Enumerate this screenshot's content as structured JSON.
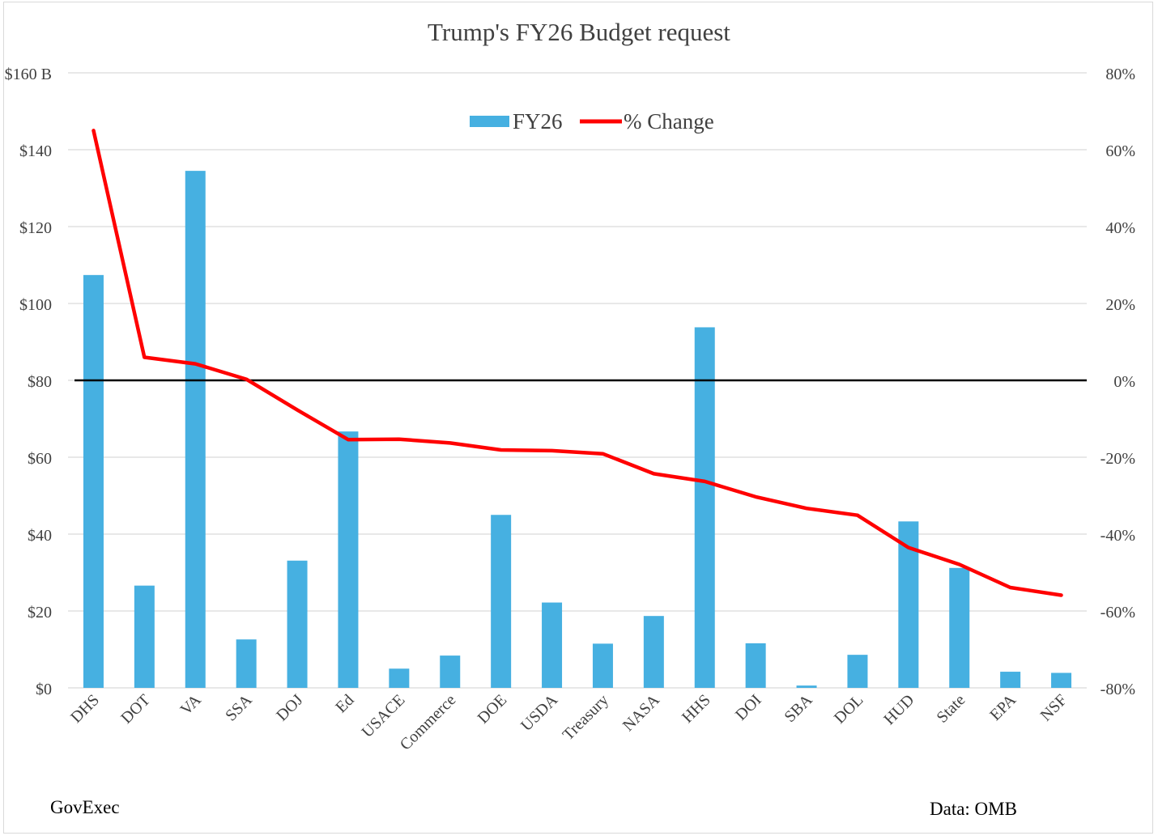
{
  "colors": {
    "bar": "#46b0e1",
    "line": "#ff0000",
    "grid": "#d9d9d9",
    "zero_line": "#000000",
    "text": "#404040"
  },
  "chart_data": {
    "type": "bar",
    "title": "Trump's FY26 Budget request",
    "categories": [
      "DHS",
      "DOT",
      "VA",
      "SSA",
      "DOJ",
      "Ed",
      "USACE",
      "Commerce",
      "DOE",
      "USDA",
      "Treasury",
      "NASA",
      "HHS",
      "DOI",
      "SBA",
      "DOL",
      "HUD",
      "State",
      "EPA",
      "NSF"
    ],
    "series": [
      {
        "name": "FY26",
        "type": "bar",
        "axis": "left",
        "values": [
          107.4,
          26.6,
          134.5,
          12.6,
          33.1,
          66.7,
          5.0,
          8.4,
          45.0,
          22.2,
          11.5,
          18.7,
          93.8,
          11.6,
          0.6,
          8.6,
          43.3,
          31.2,
          4.2,
          3.9
        ]
      },
      {
        "name": "% Change",
        "type": "line",
        "axis": "right",
        "values": [
          65,
          6,
          4.3,
          0.3,
          -7.7,
          -15.4,
          -15.3,
          -16.3,
          -18.1,
          -18.3,
          -19.1,
          -24.3,
          -26.3,
          -30.3,
          -33.3,
          -35.1,
          -43.5,
          -47.9,
          -53.9,
          -55.9
        ]
      }
    ],
    "left_axis": {
      "min": 0,
      "max": 160,
      "step": 20,
      "tick_labels": [
        "$0",
        "$20",
        "$40",
        "$60",
        "$80",
        "$100",
        "$120",
        "$140",
        "$160 B"
      ]
    },
    "right_axis": {
      "min": -80,
      "max": 80,
      "step": 20,
      "tick_labels": [
        "-80%",
        "-60%",
        "-40%",
        "-20%",
        "0%",
        "20%",
        "40%",
        "60%",
        "80%"
      ]
    },
    "zero_reference": 0,
    "grid": true,
    "legend": {
      "position": "top-center"
    }
  },
  "footer": {
    "left": "GovExec",
    "right": "Data: OMB"
  }
}
